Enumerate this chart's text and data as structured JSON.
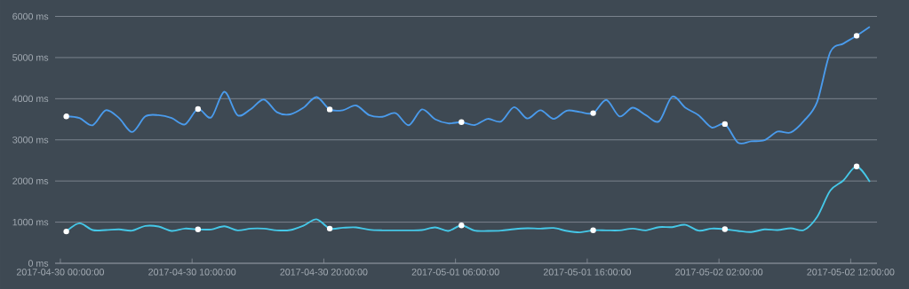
{
  "chart_data": {
    "type": "line",
    "x": [
      "2017-04-30T00:27",
      "2017-04-30T01:27",
      "2017-04-30T02:27",
      "2017-04-30T03:27",
      "2017-04-30T04:27",
      "2017-04-30T05:27",
      "2017-04-30T06:27",
      "2017-04-30T07:27",
      "2017-04-30T08:27",
      "2017-04-30T09:27",
      "2017-04-30T10:27",
      "2017-04-30T11:27",
      "2017-04-30T12:27",
      "2017-04-30T13:27",
      "2017-04-30T14:27",
      "2017-04-30T15:27",
      "2017-04-30T16:27",
      "2017-04-30T17:27",
      "2017-04-30T18:27",
      "2017-04-30T19:27",
      "2017-04-30T20:27",
      "2017-04-30T21:27",
      "2017-04-30T22:27",
      "2017-04-30T23:27",
      "2017-05-01T00:27",
      "2017-05-01T01:27",
      "2017-05-01T02:27",
      "2017-05-01T03:27",
      "2017-05-01T04:27",
      "2017-05-01T05:27",
      "2017-05-01T06:27",
      "2017-05-01T07:27",
      "2017-05-01T08:27",
      "2017-05-01T09:27",
      "2017-05-01T10:27",
      "2017-05-01T11:27",
      "2017-05-01T12:27",
      "2017-05-01T13:27",
      "2017-05-01T14:27",
      "2017-05-01T15:27",
      "2017-05-01T16:27",
      "2017-05-01T17:27",
      "2017-05-01T18:27",
      "2017-05-01T19:27",
      "2017-05-01T20:27",
      "2017-05-01T21:27",
      "2017-05-01T22:27",
      "2017-05-01T23:27",
      "2017-05-02T00:27",
      "2017-05-02T01:27",
      "2017-05-02T02:27",
      "2017-05-02T03:27",
      "2017-05-02T04:27",
      "2017-05-02T05:27",
      "2017-05-02T06:27",
      "2017-05-02T07:27",
      "2017-05-02T08:27",
      "2017-05-02T09:27",
      "2017-05-02T10:27",
      "2017-05-02T11:27",
      "2017-05-02T12:27",
      "2017-05-02T13:27"
    ],
    "series": [
      {
        "color": "#4a9bec",
        "values": [
          3570,
          3530,
          3355,
          3720,
          3530,
          3190,
          3570,
          3600,
          3530,
          3375,
          3750,
          3545,
          4170,
          3600,
          3745,
          3980,
          3670,
          3620,
          3780,
          4040,
          3740,
          3720,
          3835,
          3600,
          3560,
          3650,
          3355,
          3740,
          3500,
          3400,
          3430,
          3360,
          3510,
          3445,
          3795,
          3520,
          3720,
          3510,
          3710,
          3675,
          3650,
          3970,
          3570,
          3780,
          3600,
          3450,
          4050,
          3780,
          3600,
          3300,
          3385,
          2930,
          2965,
          2990,
          3200,
          3180,
          3460,
          3920,
          5130,
          5340,
          5530,
          5745
        ]
      },
      {
        "color": "#45c8e8",
        "values": [
          773,
          972,
          808,
          808,
          823,
          794,
          908,
          894,
          787,
          844,
          823,
          823,
          900,
          801,
          844,
          844,
          801,
          808,
          915,
          1070,
          844,
          865,
          872,
          816,
          801,
          801,
          801,
          808,
          872,
          787,
          922,
          794,
          787,
          794,
          830,
          851,
          844,
          858,
          787,
          752,
          801,
          801,
          801,
          844,
          801,
          879,
          879,
          936,
          794,
          844,
          830,
          787,
          759,
          823,
          808,
          851,
          808,
          1128,
          1766,
          2014,
          2355,
          1979
        ]
      },
      {
        "type": "scatter",
        "marker": "circle",
        "color": "#ffffff",
        "x": [
          "2017-04-30T00:27",
          "2017-04-30T10:27",
          "2017-04-30T20:27",
          "2017-05-01T06:27",
          "2017-05-01T16:27",
          "2017-05-02T02:27",
          "2017-05-02T12:27"
        ],
        "values": [
          3570,
          3750,
          3740,
          3430,
          3650,
          3385,
          5530
        ]
      },
      {
        "type": "scatter",
        "marker": "circle",
        "color": "#ffffff",
        "x": [
          "2017-04-30T00:27",
          "2017-04-30T10:27",
          "2017-04-30T20:27",
          "2017-05-01T06:27",
          "2017-05-01T16:27",
          "2017-05-02T02:27",
          "2017-05-02T12:27"
        ],
        "values": [
          773,
          823,
          844,
          922,
          801,
          830,
          2355
        ]
      }
    ],
    "xlim": [
      "2017-04-29T23:36",
      "2017-05-02T14:00"
    ],
    "xticks": [
      {
        "value": "2017-04-30T00:00",
        "label": "2017-04-30 00:00:00"
      },
      {
        "value": "2017-04-30T10:00",
        "label": "2017-04-30 10:00:00"
      },
      {
        "value": "2017-04-30T20:00",
        "label": "2017-04-30 20:00:00"
      },
      {
        "value": "2017-05-01T06:00",
        "label": "2017-05-01 06:00:00"
      },
      {
        "value": "2017-05-01T16:00",
        "label": "2017-05-01 16:00:00"
      },
      {
        "value": "2017-05-02T02:00",
        "label": "2017-05-02 02:00:00"
      },
      {
        "value": "2017-05-02T12:00",
        "label": "2017-05-02 12:00:00"
      }
    ],
    "ylim": [
      0,
      6000
    ],
    "yticks": [
      {
        "value": 0,
        "label": "0 ms"
      },
      {
        "value": 1000,
        "label": "1000 ms"
      },
      {
        "value": 2000,
        "label": "2000 ms"
      },
      {
        "value": 3000,
        "label": "3000 ms"
      },
      {
        "value": 4000,
        "label": "4000 ms"
      },
      {
        "value": 5000,
        "label": "5000 ms"
      },
      {
        "value": 6000,
        "label": "6000 ms"
      }
    ],
    "grid": "y",
    "marker": "none"
  }
}
